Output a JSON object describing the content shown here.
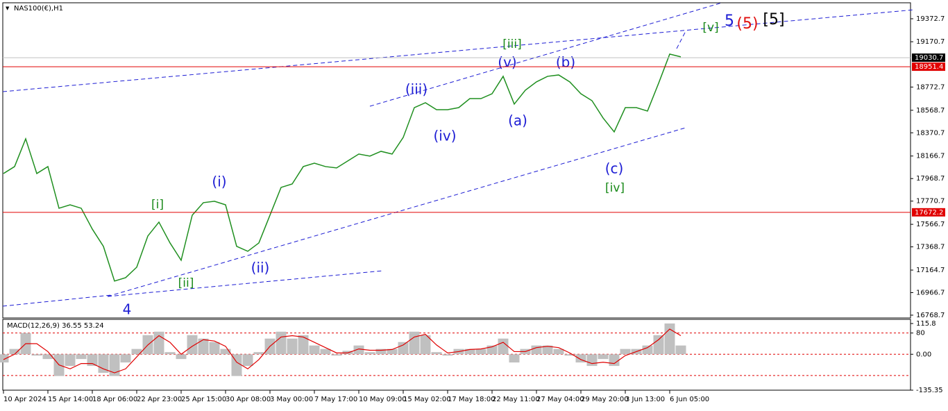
{
  "chart_data": [
    {
      "type": "line",
      "title": "NAS100(€),H1",
      "color": "#1f8f1f",
      "values": [
        18013,
        18074,
        18318,
        18013,
        18074,
        17708,
        17738,
        17708,
        17525,
        17373,
        17068,
        17098,
        17190,
        17464,
        17586,
        17403,
        17251,
        17647,
        17757,
        17769,
        17738,
        17373,
        17330,
        17403,
        17647,
        17891,
        17921,
        18074,
        18104,
        18074,
        18062,
        18123,
        18184,
        18166,
        18208,
        18184,
        18330,
        18592,
        18635,
        18574,
        18574,
        18592,
        18671,
        18671,
        18714,
        18867,
        18623,
        18745,
        18818,
        18867,
        18879,
        18818,
        18714,
        18653,
        18501,
        18379,
        18592,
        18592,
        18562,
        18806,
        19062,
        19038
      ],
      "ylim": [
        16744,
        19513
      ],
      "yticks": [
        19372.7,
        19170.7,
        18772.7,
        18568.7,
        18370.7,
        18166.7,
        17968.7,
        17770.7,
        17566.7,
        17368.7,
        17164.7,
        16966.7,
        16768.7
      ],
      "hlines": [
        {
          "value": 19030.7,
          "color": "#c0c0c0",
          "box": "#000000"
        },
        {
          "value": 18951.4,
          "color": "#e00000",
          "box": "#e00000"
        },
        {
          "value": 17672.2,
          "color": "#e00000",
          "box": "#e00000"
        }
      ],
      "xticks": [
        {
          "value": 0,
          "label": "10 Apr 2024"
        },
        {
          "value": 4,
          "label": "15 Apr 14:00"
        },
        {
          "value": 8,
          "label": "18 Apr 06:00"
        },
        {
          "value": 12,
          "label": "22 Apr 23:00"
        },
        {
          "value": 16,
          "label": "25 Apr 15:00"
        },
        {
          "value": 20,
          "label": "30 Apr 08:00"
        },
        {
          "value": 24,
          "label": "3 May 00:00"
        },
        {
          "value": 28,
          "label": "7 May 17:00"
        },
        {
          "value": 32,
          "label": "10 May 09:00"
        },
        {
          "value": 36,
          "label": "15 May 02:00"
        },
        {
          "value": 40,
          "label": "17 May 18:00"
        },
        {
          "value": 44,
          "label": "22 May 11:00"
        },
        {
          "value": 48,
          "label": "27 May 04:00"
        },
        {
          "value": 52,
          "label": "29 May 20:00"
        },
        {
          "value": 56,
          "label": "3 Jun 13:00"
        },
        {
          "value": 60,
          "label": "6 Jun 05:00"
        }
      ],
      "annotations": [
        "[i]",
        "[ii]",
        "[iii]",
        "[iv]",
        "[v]",
        "(i)",
        "(ii)",
        "(iii)",
        "(iv)",
        "(v)",
        "(a)",
        "(b)",
        "(c)",
        "4",
        "5",
        "(5)",
        "[5]"
      ]
    },
    {
      "type": "bar",
      "title": "MACD(12,26,9) 36.55 53.24",
      "color": "#c0c0c0",
      "values": [
        -31,
        20,
        80,
        -5,
        -18,
        -82,
        -44,
        -18,
        -44,
        -70,
        -82,
        -31,
        20,
        72,
        85,
        8,
        -18,
        72,
        59,
        46,
        20,
        -82,
        -44,
        8,
        59,
        85,
        59,
        72,
        33,
        20,
        -5,
        13,
        33,
        8,
        20,
        20,
        46,
        85,
        72,
        8,
        -5,
        20,
        20,
        20,
        33,
        59,
        -31,
        20,
        33,
        33,
        20,
        -5,
        -31,
        -44,
        -18,
        -44,
        20,
        20,
        33,
        72,
        116,
        33
      ],
      "signal": {
        "color": "#e00000",
        "values": [
          -20,
          0,
          40,
          40,
          10,
          -40,
          -55,
          -35,
          -35,
          -55,
          -70,
          -55,
          -10,
          35,
          70,
          45,
          0,
          30,
          55,
          50,
          30,
          -30,
          -55,
          -20,
          30,
          65,
          70,
          65,
          45,
          25,
          5,
          5,
          20,
          15,
          15,
          18,
          35,
          65,
          75,
          35,
          5,
          10,
          18,
          20,
          28,
          45,
          10,
          10,
          25,
          30,
          25,
          5,
          -20,
          -35,
          -30,
          -35,
          -5,
          10,
          25,
          55,
          95,
          70
        ]
      },
      "ylim": [
        -135.35,
        115.8
      ],
      "yticks": [
        115.8,
        80,
        {
          "value": 0,
          "label": "0.00"
        },
        -135.35
      ],
      "levels": [
        80,
        0,
        -80
      ]
    }
  ]
}
